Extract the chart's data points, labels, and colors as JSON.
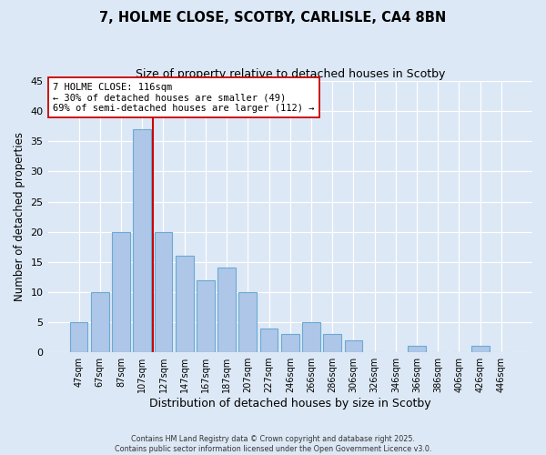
{
  "title": "7, HOLME CLOSE, SCOTBY, CARLISLE, CA4 8BN",
  "subtitle": "Size of property relative to detached houses in Scotby",
  "xlabel": "Distribution of detached houses by size in Scotby",
  "ylabel": "Number of detached properties",
  "bar_labels": [
    "47sqm",
    "67sqm",
    "87sqm",
    "107sqm",
    "127sqm",
    "147sqm",
    "167sqm",
    "187sqm",
    "207sqm",
    "227sqm",
    "246sqm",
    "266sqm",
    "286sqm",
    "306sqm",
    "326sqm",
    "346sqm",
    "366sqm",
    "386sqm",
    "406sqm",
    "426sqm",
    "446sqm"
  ],
  "bar_values": [
    5,
    10,
    20,
    37,
    20,
    16,
    12,
    14,
    10,
    4,
    3,
    5,
    3,
    2,
    0,
    0,
    1,
    0,
    0,
    1,
    0
  ],
  "bar_color": "#aec6e8",
  "bar_edge_color": "#6aaad4",
  "vline_color": "#cc0000",
  "annotation_title": "7 HOLME CLOSE: 116sqm",
  "annotation_line2": "← 30% of detached houses are smaller (49)",
  "annotation_line3": "69% of semi-detached houses are larger (112) →",
  "annotation_box_color": "#ffffff",
  "annotation_box_edge": "#cc0000",
  "ylim": [
    0,
    45
  ],
  "yticks": [
    0,
    5,
    10,
    15,
    20,
    25,
    30,
    35,
    40,
    45
  ],
  "background_color": "#dce8f5",
  "footer1": "Contains HM Land Registry data © Crown copyright and database right 2025.",
  "footer2": "Contains public sector information licensed under the Open Government Licence v3.0."
}
